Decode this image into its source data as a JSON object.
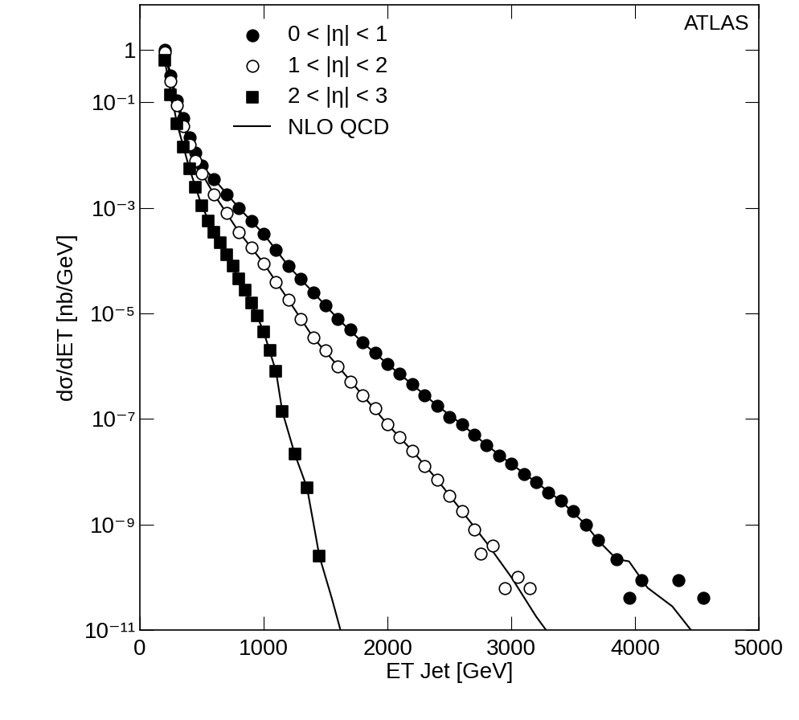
{
  "chart_data": {
    "type": "scatter",
    "xlabel": "ET Jet [GeV]",
    "ylabel": "dσ/dET [nb/GeV]",
    "annotations": [
      "ATLAS"
    ],
    "log": "y",
    "legend": "upper left",
    "xlim": [
      0,
      5000
    ],
    "xticks": [
      0,
      1000,
      2000,
      3000,
      4000,
      5000
    ],
    "ylim": [
      1e-11,
      7
    ],
    "yticks": [
      1,
      {
        "value": 0.1,
        "label": "10⁻¹"
      },
      {
        "value": 0.001,
        "label": "10⁻³"
      },
      {
        "value": 1e-05,
        "label": "10⁻⁵"
      },
      {
        "value": 1e-07,
        "label": "10⁻⁷"
      },
      {
        "value": 1e-09,
        "label": "10⁻⁹"
      },
      {
        "value": 1e-11,
        "label": "10⁻¹¹"
      }
    ],
    "series": [
      {
        "name": "0 < |η| < 1",
        "type": "scatter",
        "marker": "circle",
        "color": "#000000",
        "x": [
          200,
          250,
          300,
          350,
          400,
          450,
          500,
          600,
          700,
          800,
          900,
          1000,
          1100,
          1200,
          1300,
          1400,
          1500,
          1600,
          1700,
          1800,
          1900,
          2000,
          2100,
          2200,
          2300,
          2400,
          2500,
          2600,
          2700,
          2800,
          2900,
          3000,
          3100,
          3200,
          3300,
          3400,
          3500,
          3600,
          3700,
          3850,
          3950,
          4050,
          4350,
          4550
        ],
        "values": [
          1.0,
          0.32,
          0.11,
          0.05,
          0.022,
          0.011,
          0.0063,
          0.0035,
          0.0018,
          0.001,
          0.00056,
          0.00032,
          0.00016,
          7.9e-05,
          4.5e-05,
          2.5e-05,
          1.4e-05,
          7.9e-06,
          5e-06,
          2.8e-06,
          1.8e-06,
          1.1e-06,
          7.1e-07,
          4.5e-07,
          2.8e-07,
          1.8e-07,
          1.1e-07,
          7.9e-08,
          5e-08,
          3.2e-08,
          2e-08,
          1.4e-08,
          8.9e-09,
          6.3e-09,
          4e-09,
          2.8e-09,
          1.8e-09,
          1e-09,
          5e-10,
          2.2e-10,
          4e-11,
          8.9e-11,
          8.9e-11,
          4e-11
        ]
      },
      {
        "name": "1 < |η| < 2",
        "type": "scatter",
        "marker": "open_circle",
        "color": "#000000",
        "x": [
          200,
          250,
          300,
          350,
          400,
          450,
          500,
          600,
          700,
          800,
          900,
          1000,
          1100,
          1200,
          1300,
          1400,
          1500,
          1600,
          1700,
          1800,
          1900,
          2000,
          2100,
          2200,
          2300,
          2400,
          2500,
          2600,
          2700,
          2750,
          2850,
          2950,
          3050,
          3150
        ],
        "values": [
          0.89,
          0.25,
          0.089,
          0.035,
          0.016,
          0.0079,
          0.0045,
          0.0018,
          0.00079,
          0.00035,
          0.00018,
          8.9e-05,
          4e-05,
          1.8e-05,
          7.9e-06,
          3.5e-06,
          2e-06,
          1e-06,
          5e-07,
          2.8e-07,
          1.6e-07,
          7.9e-08,
          4.5e-08,
          2.5e-08,
          1.3e-08,
          7.1e-09,
          3.5e-09,
          1.8e-09,
          7.9e-10,
          2.8e-10,
          4e-10,
          6.3e-11,
          1e-10,
          6.3e-11
        ]
      },
      {
        "name": "2 < |η| < 3",
        "type": "scatter",
        "marker": "square",
        "color": "#000000",
        "x": [
          200,
          250,
          300,
          350,
          400,
          450,
          500,
          550,
          600,
          650,
          700,
          750,
          800,
          850,
          900,
          950,
          1000,
          1050,
          1100,
          1150,
          1250,
          1350,
          1450
        ],
        "values": [
          0.63,
          0.14,
          0.04,
          0.014,
          0.0056,
          0.0025,
          0.0011,
          0.00056,
          0.00035,
          0.00022,
          0.00013,
          7.9e-05,
          4.5e-05,
          2.8e-05,
          1.6e-05,
          8.9e-06,
          4.5e-06,
          2e-06,
          7.9e-07,
          1.4e-07,
          2.2e-08,
          5e-09,
          2.5e-10
        ]
      },
      {
        "name": "NLO QCD",
        "type": "line",
        "line_style": "solid",
        "color": "#000000",
        "x": [
          200,
          300,
          400,
          500,
          600,
          800,
          1000,
          1200,
          1400,
          1600,
          1800,
          2000,
          2200,
          2400,
          2600,
          2800,
          3000,
          3200,
          3400,
          3600,
          3700,
          3850,
          3950,
          4100,
          4300,
          4450
        ],
        "values": [
          1.0,
          0.11,
          0.022,
          0.0063,
          0.0035,
          0.001,
          0.00032,
          7.9e-05,
          2.5e-05,
          7.9e-06,
          2.8e-06,
          1.1e-06,
          4.5e-07,
          1.8e-07,
          7.9e-08,
          3.2e-08,
          1.4e-08,
          6.3e-09,
          2.8e-09,
          1e-09,
          5e-10,
          2.2e-10,
          2e-10,
          6.3e-11,
          2.8e-11,
          1e-11
        ]
      },
      {
        "name": "NLO QCD",
        "type": "line",
        "line_style": "solid",
        "color": "#000000",
        "x": [
          200,
          300,
          400,
          500,
          600,
          800,
          1000,
          1200,
          1400,
          1600,
          1800,
          2000,
          2200,
          2400,
          2600,
          2800,
          3000,
          3200,
          3280
        ],
        "values": [
          0.89,
          0.089,
          0.016,
          0.0045,
          0.0018,
          0.00035,
          8.9e-05,
          1.8e-05,
          3.5e-06,
          1e-06,
          2.8e-07,
          7.9e-08,
          2.5e-08,
          7.1e-09,
          1.8e-09,
          4.5e-10,
          1e-10,
          1.8e-11,
          1e-11
        ]
      },
      {
        "name": "NLO QCD",
        "type": "line",
        "line_style": "solid",
        "color": "#000000",
        "x": [
          200,
          300,
          400,
          500,
          600,
          700,
          800,
          900,
          1000,
          1100,
          1150,
          1250,
          1350,
          1450,
          1550,
          1620
        ],
        "values": [
          0.63,
          0.04,
          0.0056,
          0.0011,
          0.00035,
          0.00013,
          4.5e-05,
          1.6e-05,
          4.5e-06,
          7.9e-07,
          1.4e-07,
          2.2e-08,
          5e-09,
          2.5e-10,
          4e-11,
          1e-11
        ]
      }
    ]
  }
}
